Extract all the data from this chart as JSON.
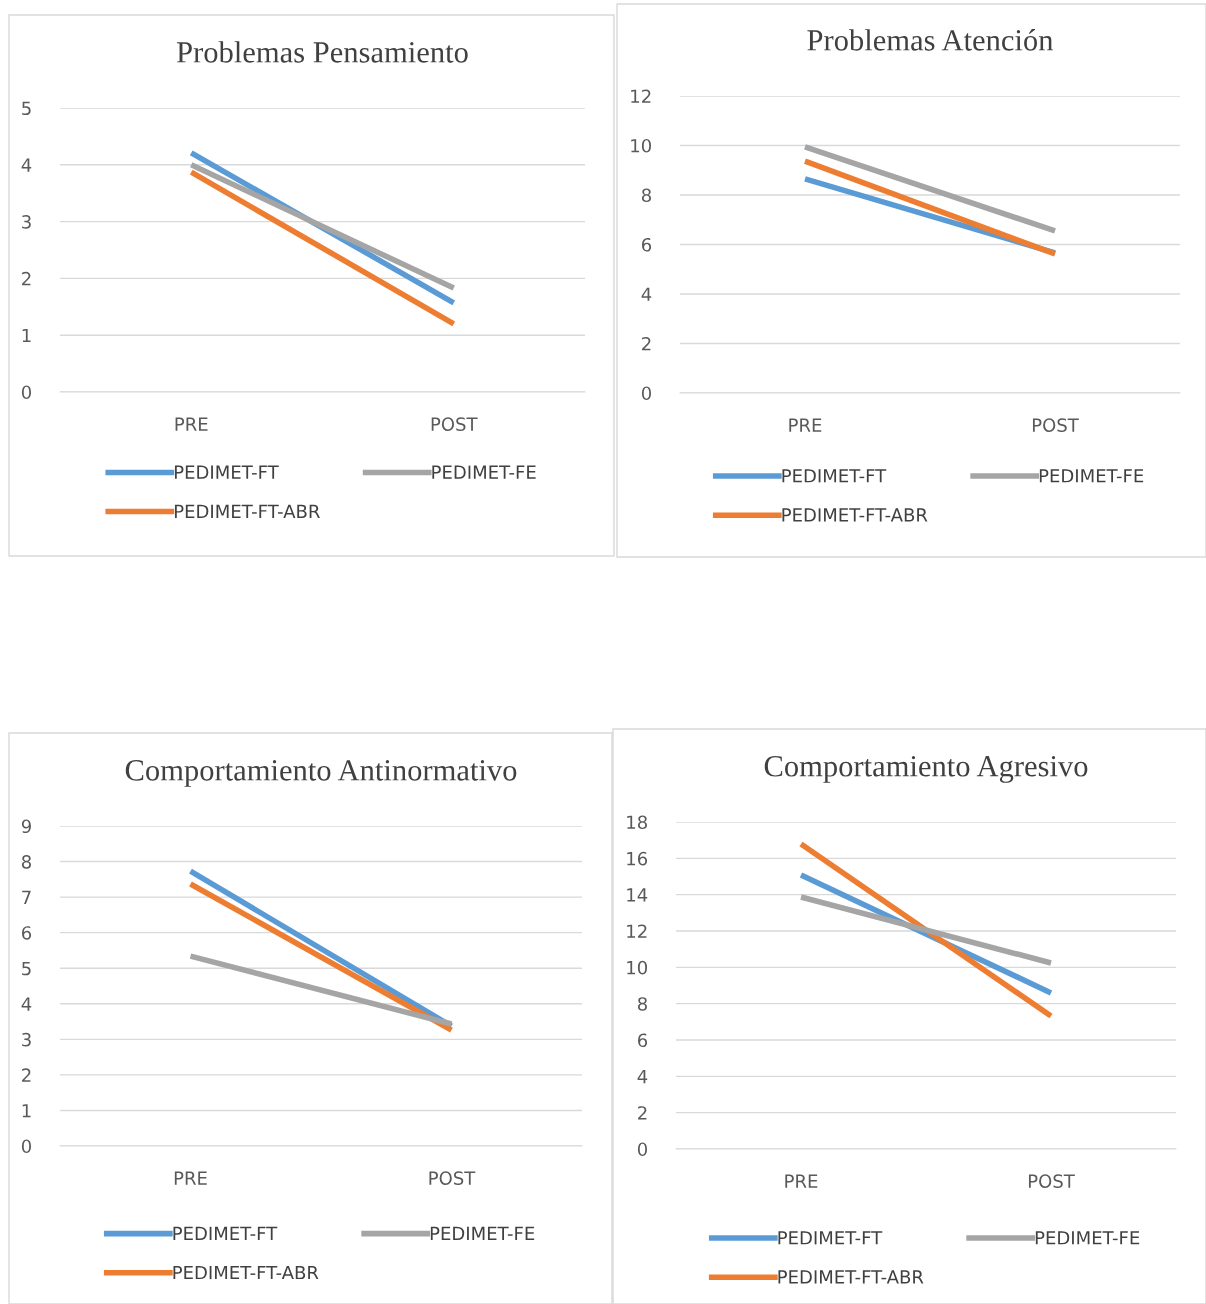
{
  "chart_data": [
    {
      "type": "line",
      "title": "Problemas Pensamiento",
      "categories": [
        "PRE",
        "POST"
      ],
      "ylim": [
        0,
        5
      ],
      "yticks": [
        0,
        1,
        2,
        3,
        4,
        5
      ],
      "grid": "y",
      "legend": "bottom",
      "marker": "none",
      "series": [
        {
          "name": "PEDIMET-FT",
          "color": "#5b9bd5",
          "values": [
            4.21,
            1.57
          ]
        },
        {
          "name": "PEDIMET-FT-ABR",
          "color": "#ed7d31",
          "values": [
            3.87,
            1.2
          ]
        },
        {
          "name": "PEDIMET-FE",
          "color": "#a5a5a5",
          "values": [
            4.0,
            1.83
          ]
        }
      ]
    },
    {
      "type": "line",
      "title": "Problemas Atención",
      "categories": [
        "PRE",
        "POST"
      ],
      "ylim": [
        0,
        12
      ],
      "yticks": [
        0,
        2,
        4,
        6,
        8,
        10,
        12
      ],
      "grid": "y",
      "legend": "bottom",
      "marker": "none",
      "series": [
        {
          "name": "PEDIMET-FT",
          "color": "#5b9bd5",
          "values": [
            8.65,
            5.66
          ]
        },
        {
          "name": "PEDIMET-FT-ABR",
          "color": "#ed7d31",
          "values": [
            9.37,
            5.62
          ]
        },
        {
          "name": "PEDIMET-FE",
          "color": "#a5a5a5",
          "values": [
            9.94,
            6.55
          ]
        }
      ]
    },
    {
      "type": "line",
      "title": "Comportamiento Antinormativo",
      "categories": [
        "PRE",
        "POST"
      ],
      "ylim": [
        0,
        9
      ],
      "yticks": [
        0,
        1,
        2,
        3,
        4,
        5,
        6,
        7,
        8,
        9
      ],
      "grid": "y",
      "legend": "bottom",
      "marker": "none",
      "series": [
        {
          "name": "PEDIMET-FT",
          "color": "#5b9bd5",
          "values": [
            7.73,
            3.37
          ]
        },
        {
          "name": "PEDIMET-FT-ABR",
          "color": "#ed7d31",
          "values": [
            7.37,
            3.26
          ]
        },
        {
          "name": "PEDIMET-FE",
          "color": "#a5a5a5",
          "values": [
            5.34,
            3.43
          ]
        }
      ]
    },
    {
      "type": "line",
      "title": "Comportamiento Agresivo",
      "categories": [
        "PRE",
        "POST"
      ],
      "ylim": [
        0,
        18
      ],
      "yticks": [
        0,
        2,
        4,
        6,
        8,
        10,
        12,
        14,
        16,
        18
      ],
      "grid": "y",
      "legend": "bottom",
      "marker": "none",
      "series": [
        {
          "name": "PEDIMET-FT",
          "color": "#5b9bd5",
          "values": [
            15.08,
            8.59
          ]
        },
        {
          "name": "PEDIMET-FT-ABR",
          "color": "#ed7d31",
          "values": [
            16.79,
            7.32
          ]
        },
        {
          "name": "PEDIMET-FE",
          "color": "#a5a5a5",
          "values": [
            13.87,
            10.24
          ]
        }
      ]
    }
  ]
}
